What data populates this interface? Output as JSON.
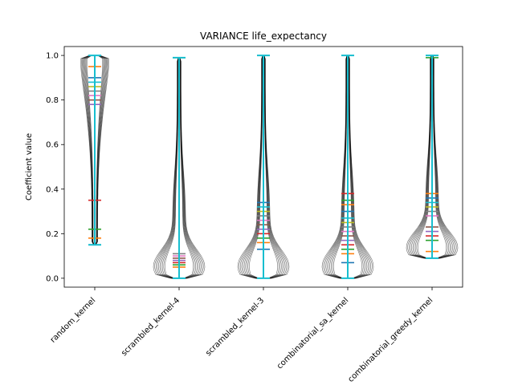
{
  "chart_data": {
    "type": "violin",
    "title": "VARIANCE life_expectancy",
    "xlabel": "",
    "ylabel": "Coefficient value",
    "ylim": [
      -0.04,
      1.04
    ],
    "yticks": [
      0.0,
      0.2,
      0.4,
      0.6,
      0.8,
      1.0
    ],
    "ytick_labels": [
      "0.0",
      "0.2",
      "0.4",
      "0.6",
      "0.8",
      "1.0"
    ],
    "categories": [
      "random_kernel",
      "scrambled_kernel-4",
      "scrambled_kernel-3",
      "combinatorial_sa_kernel",
      "combinatorial_greedy_kernel"
    ],
    "xtick_rotation": 45,
    "grid": false,
    "colors": {
      "violin_edge": "#000000",
      "last_series": "#17becf",
      "palette": [
        "#1f77b4",
        "#ff7f0e",
        "#2ca02c",
        "#d62728",
        "#9467bd",
        "#8c564b",
        "#e377c2",
        "#7f7f7f",
        "#bcbd22",
        "#17becf"
      ]
    },
    "groups": [
      {
        "category": "random_kernel",
        "min": 0.15,
        "max": 1.0,
        "medians": [
          0.15,
          0.18,
          0.22,
          0.35,
          0.78,
          0.8,
          0.82,
          0.84,
          0.86,
          0.88,
          0.9,
          0.95
        ],
        "density_shape": "top_heavy"
      },
      {
        "category": "scrambled_kernel-4",
        "min": 0.0,
        "max": 0.99,
        "medians": [
          0.0,
          0.05,
          0.06,
          0.07,
          0.08,
          0.09,
          0.1,
          0.11,
          0.99
        ],
        "density_shape": "bottom_heavy"
      },
      {
        "category": "scrambled_kernel-3",
        "min": 0.0,
        "max": 1.0,
        "medians": [
          0.13,
          0.16,
          0.18,
          0.2,
          0.22,
          0.24,
          0.26,
          0.28,
          0.3,
          0.32,
          0.34
        ],
        "density_shape": "bottom_heavy"
      },
      {
        "category": "combinatorial_sa_kernel",
        "min": 0.0,
        "max": 1.0,
        "medians": [
          0.07,
          0.11,
          0.13,
          0.15,
          0.17,
          0.19,
          0.21,
          0.23,
          0.25,
          0.27,
          0.3,
          0.33,
          0.35,
          0.38
        ],
        "density_shape": "bottom_heavy"
      },
      {
        "category": "combinatorial_greedy_kernel",
        "min": 0.09,
        "max": 1.0,
        "medians": [
          0.09,
          0.12,
          0.17,
          0.19,
          0.21,
          0.23,
          0.28,
          0.3,
          0.32,
          0.34,
          0.36,
          0.38,
          0.99
        ],
        "density_shape": "bottom_heavy"
      }
    ]
  }
}
